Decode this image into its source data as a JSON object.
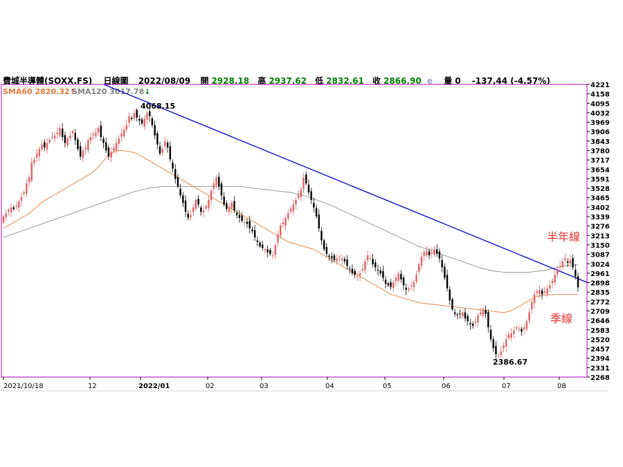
{
  "header": {
    "symbol": "費城半導體(SOXX.FS)",
    "period": "日線圖",
    "date": "2022/08/09",
    "open_label": "開",
    "open": "2928.18",
    "high_label": "高",
    "high": "2937.62",
    "low_label": "低",
    "low": "2832.61",
    "close_label": "收",
    "close": "2866.90",
    "e_mark": "e",
    "volume_label": "量",
    "volume": "0",
    "change": "-137.44 (-4.57%)"
  },
  "indicators": {
    "sma60_label": "SMA60 2820.32",
    "sma60_arrow": "↑",
    "sma120_label": "SMA120 3017.78",
    "sma120_arrow": "↓"
  },
  "colors": {
    "up": "#e06060",
    "down": "#000000",
    "sma60": "#e07a3a",
    "sma120": "#808080",
    "trendline": "#0000cc",
    "annotation": "#e03030",
    "frame": "#b000b0"
  },
  "chart_data": {
    "type": "candlestick",
    "ylim": [
      2268,
      4221
    ],
    "yticks": [
      "4221",
      "4158",
      "4095",
      "4032",
      "3969",
      "3906",
      "3843",
      "3780",
      "3717",
      "3654",
      "3591",
      "3528",
      "3465",
      "3402",
      "3339",
      "3276",
      "3213",
      "3150",
      "3087",
      "3024",
      "2961",
      "2898",
      "2835",
      "2772",
      "2709",
      "2646",
      "2583",
      "2520",
      "2457",
      "2394",
      "2331",
      "2268"
    ],
    "xtick_labels": [
      "2021/10/18",
      "12",
      "2022/01",
      "02",
      "03",
      "04",
      "05",
      "06",
      "07",
      "08"
    ],
    "peak_label": "4068.15",
    "trough_label": "2386.67",
    "annotation_half_year": "半年線",
    "annotation_quarter": "季線",
    "closes": [
      3340,
      3360,
      3385,
      3400,
      3390,
      3410,
      3440,
      3470,
      3500,
      3560,
      3600,
      3700,
      3720,
      3760,
      3790,
      3820,
      3800,
      3830,
      3850,
      3870,
      3880,
      3900,
      3930,
      3870,
      3830,
      3860,
      3880,
      3910,
      3850,
      3790,
      3740,
      3780,
      3800,
      3850,
      3870,
      3890,
      3900,
      3930,
      3870,
      3830,
      3780,
      3740,
      3770,
      3800,
      3830,
      3860,
      3890,
      3920,
      3950,
      4010,
      3990,
      4030,
      4000,
      3980,
      3960,
      3990,
      4030,
      4010,
      3950,
      3880,
      3820,
      3760,
      3790,
      3840,
      3800,
      3720,
      3660,
      3590,
      3540,
      3480,
      3430,
      3370,
      3330,
      3350,
      3400,
      3450,
      3420,
      3370,
      3380,
      3410,
      3450,
      3510,
      3560,
      3600,
      3540,
      3480,
      3420,
      3390,
      3400,
      3430,
      3380,
      3350,
      3330,
      3310,
      3300,
      3290,
      3260,
      3240,
      3200,
      3170,
      3140,
      3130,
      3120,
      3100,
      3090,
      3080,
      3150,
      3220,
      3280,
      3300,
      3330,
      3360,
      3390,
      3420,
      3450,
      3480,
      3520,
      3600,
      3560,
      3500,
      3450,
      3400,
      3340,
      3260,
      3180,
      3120,
      3090,
      3070,
      3060,
      3050,
      3060,
      3070,
      3060,
      3040,
      3010,
      2990,
      2960,
      2950,
      2940,
      2960,
      2990,
      3040,
      3080,
      3060,
      3020,
      3000,
      2980,
      2960,
      2930,
      2890,
      2880,
      2870,
      2900,
      2930,
      2960,
      2920,
      2880,
      2850,
      2860,
      2880,
      2900,
      2950,
      3020,
      3070,
      3100,
      3110,
      3080,
      3100,
      3120,
      3090,
      3060,
      3000,
      2930,
      2860,
      2780,
      2720,
      2690,
      2680,
      2690,
      2700,
      2660,
      2640,
      2620,
      2610,
      2640,
      2680,
      2700,
      2720,
      2690,
      2600,
      2520,
      2460,
      2420,
      2410,
      2440,
      2480,
      2520,
      2550,
      2560,
      2580,
      2600,
      2590,
      2570,
      2600,
      2640,
      2700,
      2770,
      2820,
      2840,
      2850,
      2820,
      2840,
      2860,
      2880,
      2910,
      2950,
      2990,
      3010,
      3040,
      3060,
      3030,
      3050,
      3000,
      2940,
      2867
    ],
    "sma60": [
      3260,
      3270,
      3280,
      3290,
      3300,
      3310,
      3320,
      3330,
      3340,
      3350,
      3360,
      3375,
      3390,
      3405,
      3420,
      3435,
      3445,
      3455,
      3465,
      3475,
      3485,
      3495,
      3505,
      3515,
      3525,
      3535,
      3545,
      3555,
      3565,
      3575,
      3585,
      3595,
      3605,
      3615,
      3625,
      3640,
      3655,
      3670,
      3690,
      3710,
      3730,
      3750,
      3760,
      3770,
      3775,
      3780,
      3780,
      3778,
      3775,
      3772,
      3770,
      3765,
      3760,
      3750,
      3740,
      3730,
      3720,
      3710,
      3700,
      3690,
      3680,
      3670,
      3660,
      3650,
      3640,
      3630,
      3620,
      3610,
      3600,
      3590,
      3580,
      3570,
      3560,
      3550,
      3540,
      3530,
      3520,
      3510,
      3500,
      3490,
      3480,
      3470,
      3460,
      3450,
      3440,
      3430,
      3420,
      3410,
      3400,
      3390,
      3380,
      3370,
      3360,
      3350,
      3340,
      3330,
      3320,
      3310,
      3300,
      3290,
      3280,
      3270,
      3260,
      3250,
      3240,
      3230,
      3220,
      3210,
      3200,
      3190,
      3180,
      3170,
      3165,
      3160,
      3155,
      3150,
      3145,
      3140,
      3135,
      3130,
      3125,
      3120,
      3110,
      3100,
      3090,
      3080,
      3070,
      3060,
      3050,
      3040,
      3030,
      3020,
      3010,
      3000,
      2990,
      2980,
      2970,
      2960,
      2950,
      2940,
      2930,
      2920,
      2910,
      2900,
      2890,
      2880,
      2870,
      2860,
      2850,
      2840,
      2830,
      2820,
      2815,
      2810,
      2805,
      2800,
      2795,
      2790,
      2785,
      2780,
      2775,
      2770,
      2765,
      2762,
      2760,
      2758,
      2756,
      2754,
      2752,
      2750,
      2748,
      2746,
      2744,
      2742,
      2740,
      2738,
      2736,
      2734,
      2732,
      2730,
      2728,
      2726,
      2724,
      2722,
      2720,
      2718,
      2716,
      2714,
      2712,
      2710,
      2708,
      2706,
      2704,
      2702,
      2700,
      2700,
      2702,
      2706,
      2712,
      2720,
      2730,
      2740,
      2750,
      2760,
      2770,
      2780,
      2790,
      2800,
      2805,
      2810,
      2812,
      2814,
      2816,
      2817,
      2818,
      2819,
      2820,
      2820,
      2820,
      2820,
      2820,
      2820,
      2820,
      2820,
      2820.32
    ],
    "sma120": [
      3200,
      3206,
      3212,
      3218,
      3224,
      3230,
      3236,
      3242,
      3248,
      3254,
      3260,
      3266,
      3272,
      3278,
      3284,
      3290,
      3296,
      3302,
      3308,
      3314,
      3320,
      3326,
      3332,
      3338,
      3344,
      3350,
      3356,
      3362,
      3368,
      3374,
      3380,
      3386,
      3392,
      3398,
      3404,
      3410,
      3416,
      3422,
      3428,
      3434,
      3440,
      3446,
      3452,
      3458,
      3464,
      3470,
      3476,
      3482,
      3488,
      3494,
      3500,
      3506,
      3510,
      3514,
      3518,
      3522,
      3526,
      3530,
      3532,
      3534,
      3536,
      3538,
      3540,
      3540,
      3540,
      3540,
      3540,
      3540,
      3540,
      3540,
      3540,
      3540,
      3540,
      3540,
      3540,
      3540,
      3540,
      3540,
      3540,
      3540,
      3540,
      3540,
      3540,
      3540,
      3540,
      3540,
      3540,
      3540,
      3540,
      3540,
      3540,
      3540,
      3540,
      3538,
      3536,
      3534,
      3532,
      3530,
      3528,
      3526,
      3524,
      3522,
      3520,
      3518,
      3516,
      3514,
      3512,
      3510,
      3508,
      3506,
      3504,
      3502,
      3500,
      3496,
      3492,
      3488,
      3484,
      3480,
      3474,
      3468,
      3462,
      3456,
      3450,
      3444,
      3438,
      3432,
      3426,
      3420,
      3412,
      3404,
      3396,
      3388,
      3380,
      3372,
      3364,
      3356,
      3348,
      3340,
      3332,
      3324,
      3316,
      3308,
      3300,
      3292,
      3284,
      3276,
      3268,
      3260,
      3252,
      3244,
      3236,
      3228,
      3220,
      3212,
      3204,
      3196,
      3188,
      3180,
      3172,
      3164,
      3156,
      3148,
      3140,
      3134,
      3128,
      3122,
      3116,
      3110,
      3104,
      3098,
      3092,
      3086,
      3080,
      3074,
      3068,
      3062,
      3056,
      3050,
      3044,
      3038,
      3032,
      3026,
      3020,
      3014,
      3008,
      3002,
      2996,
      2992,
      2988,
      2984,
      2980,
      2976,
      2974,
      2972,
      2970,
      2968,
      2966,
      2966,
      2966,
      2966,
      2966,
      2966,
      2966,
      2966,
      2966,
      2968,
      2970,
      2972,
      2974,
      2976,
      2978,
      2980,
      2984,
      2988,
      2992,
      2996,
      3000,
      3004,
      3008,
      3010,
      3012,
      3014,
      3016,
      3017,
      3017.78
    ]
  }
}
